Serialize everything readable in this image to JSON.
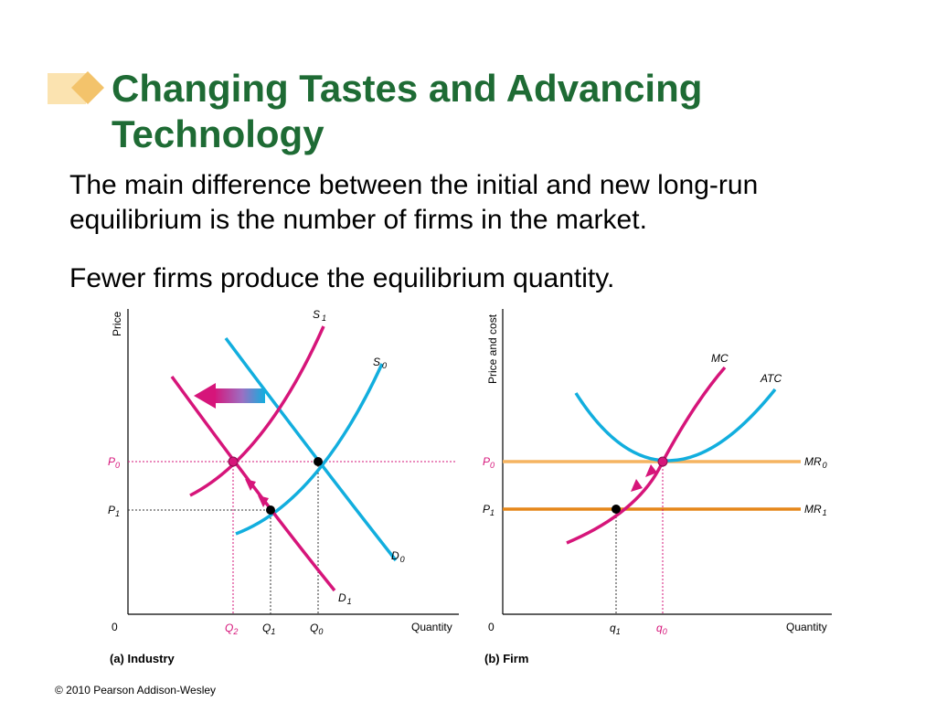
{
  "slide": {
    "title_line1": "Changing Tastes and Advancing",
    "title_line2": "Technology",
    "paragraph1_line1": "The main difference between the initial and new long-run",
    "paragraph1_line2": "equilibrium is the number of firms in the market.",
    "paragraph2": "Fewer firms produce the equilibrium quantity.",
    "copyright": "© 2010 Pearson Addison-Wesley"
  },
  "colors": {
    "title": "#1e6b34",
    "magenta": "#d6157a",
    "cyan": "#12aede",
    "orange_light": "#f5b461",
    "orange_dark": "#e5871a",
    "bullet": "#f3c36b"
  },
  "chart_data": [
    {
      "type": "line",
      "panel_label": "(a) Industry",
      "ylabel": "Price",
      "xlabel": "Quantity",
      "origin_label": "0",
      "y_ticks": [
        {
          "label": "P",
          "sub": "0",
          "value": "P0",
          "color": "#d6157a"
        },
        {
          "label": "P",
          "sub": "1",
          "value": "P1",
          "color": "#000000"
        }
      ],
      "x_ticks": [
        {
          "label": "Q",
          "sub": "2",
          "value": "Q2",
          "color": "#d6157a"
        },
        {
          "label": "Q",
          "sub": "1",
          "value": "Q1",
          "color": "#000000"
        },
        {
          "label": "Q",
          "sub": "0",
          "value": "Q0",
          "color": "#000000"
        }
      ],
      "series": [
        {
          "name": "S0",
          "label": "S",
          "sub": "0",
          "color": "#12aede",
          "kind": "supply"
        },
        {
          "name": "S1",
          "label": "S",
          "sub": "1",
          "color": "#d6157a",
          "kind": "supply"
        },
        {
          "name": "D0",
          "label": "D",
          "sub": "0",
          "color": "#12aede",
          "kind": "demand"
        },
        {
          "name": "D1",
          "label": "D",
          "sub": "1",
          "color": "#d6157a",
          "kind": "demand"
        }
      ],
      "equilibria": [
        {
          "at": "(Q0, P0)",
          "description": "initial long-run equilibrium: D0 ∩ S0"
        },
        {
          "at": "(Q1, P1)",
          "description": "short-run: D1 ∩ S0"
        },
        {
          "at": "(Q2, P0)",
          "description": "new long-run equilibrium: D1 ∩ S1"
        }
      ],
      "annotations": [
        "arrow: supply shifts leftward from S0 to S1",
        "arrows along D1 from (Q1,P1) to (Q2,P0)"
      ]
    },
    {
      "type": "line",
      "panel_label": "(b) Firm",
      "ylabel": "Price and cost",
      "xlabel": "Quantity",
      "origin_label": "0",
      "y_ticks": [
        {
          "label": "P",
          "sub": "0",
          "value": "P0",
          "color": "#d6157a"
        },
        {
          "label": "P",
          "sub": "1",
          "value": "P1",
          "color": "#000000"
        }
      ],
      "x_ticks": [
        {
          "label": "q",
          "sub": "1",
          "value": "q1",
          "color": "#000000"
        },
        {
          "label": "q",
          "sub": "0",
          "value": "q0",
          "color": "#d6157a"
        }
      ],
      "series": [
        {
          "name": "MC",
          "label": "MC",
          "sub": "",
          "color": "#d6157a",
          "kind": "cost"
        },
        {
          "name": "ATC",
          "label": "ATC",
          "sub": "",
          "color": "#12aede",
          "kind": "cost"
        },
        {
          "name": "MR0",
          "label": "MR",
          "sub": "0",
          "color": "#f5b461",
          "kind": "horizontal",
          "at": "P0"
        },
        {
          "name": "MR1",
          "label": "MR",
          "sub": "1",
          "color": "#e5871a",
          "kind": "horizontal",
          "at": "P1"
        }
      ],
      "equilibria": [
        {
          "at": "(q0, P0)",
          "description": "MC = ATC minimum = MR0"
        },
        {
          "at": "(q1, P1)",
          "description": "MC = MR1"
        }
      ],
      "annotations": [
        "arrows along MC from (q1,P1) to (q0,P0)"
      ]
    }
  ]
}
